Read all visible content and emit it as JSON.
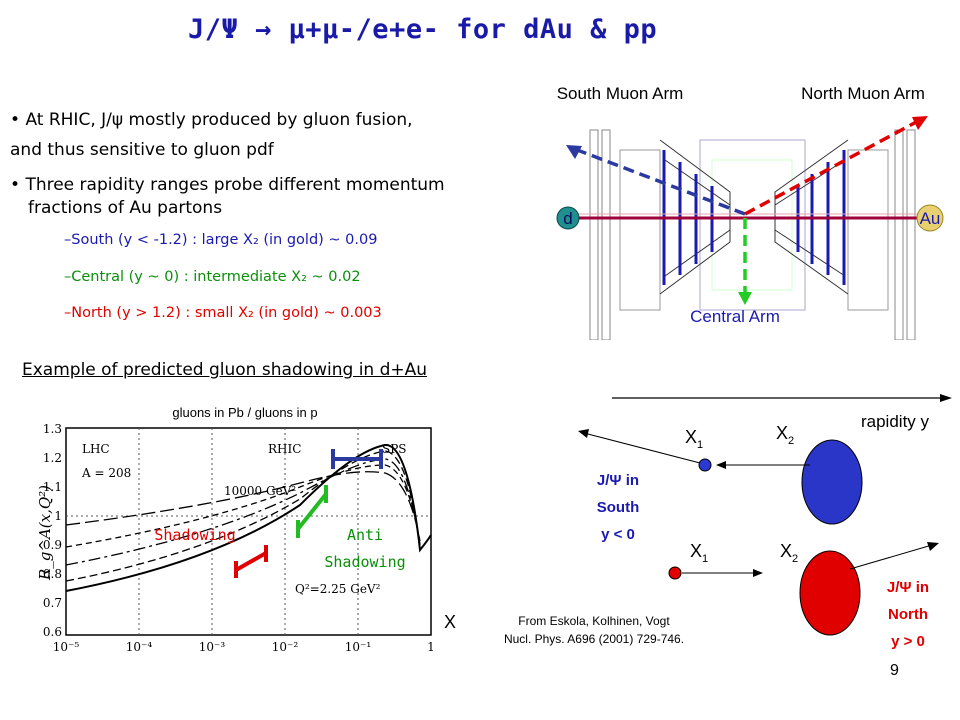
{
  "title": "J/Ψ  →  μ+μ-/e+e- for dAu & pp",
  "bullets": {
    "b1_line1": "At RHIC, J/ψ mostly produced by gluon fusion,",
    "b1_line2": "and thus sensitive to gluon pdf",
    "b2_line1": "Three rapidity ranges probe different momentum",
    "b2_line2": "fractions of Au partons",
    "south": "–South (y < -1.2) : large X₂ (in gold)   ~ 0.09",
    "central": "–Central (y ~ 0) : intermediate X₂    ~ 0.02",
    "north": "–North (y > 1.2) : small X₂ (in gold)   ~ 0.003"
  },
  "detector": {
    "south_arm": "South Muon Arm",
    "north_arm": "North Muon Arm",
    "central_arm": "Central Arm",
    "d_label": "d",
    "au_label": "Au"
  },
  "example_heading": "Example of predicted gluon shadowing in d+Au",
  "plot": {
    "title": "gluons in Pb / gluons in p",
    "x_label": "X",
    "y_label": "R_g^A(x,Q²)",
    "lhc": "LHC",
    "rhic": "RHIC",
    "sps": "SPS",
    "a_label": "A = 208",
    "q_high": "10000 GeV²",
    "q_low": "Q²=2.25 GeV²",
    "shadowing": "Shadowing",
    "anti_line1": "Anti",
    "anti_line2": "Shadowing",
    "y_ticks": [
      "1.3",
      "1.2",
      "1.1",
      "1",
      "0.9",
      "0.8",
      "0.7",
      "0.6"
    ],
    "x_ticks": [
      "10⁻⁵",
      "10⁻⁴",
      "10⁻³",
      "10⁻²",
      "10⁻¹",
      "1"
    ]
  },
  "citation": {
    "line1": "From Eskola, Kolhinen, Vogt",
    "line2": "Nucl. Phys. A696 (2001) 729-746."
  },
  "kinematics": {
    "rapidity": "rapidity y",
    "x1": "X",
    "x2": "X",
    "sub1": "1",
    "sub2": "2",
    "south_line1": "J/Ψ in",
    "south_line2": "South",
    "south_line3": "y < 0",
    "north_line1": "J/Ψ in",
    "north_line2": "North",
    "north_line3": "y > 0"
  },
  "page_number": "9",
  "colors": {
    "title": "#1a1aa8",
    "blue": "#1a1ab0",
    "green": "#0b8f0b",
    "red": "#e00000",
    "accent_ball": "#d8c060"
  }
}
